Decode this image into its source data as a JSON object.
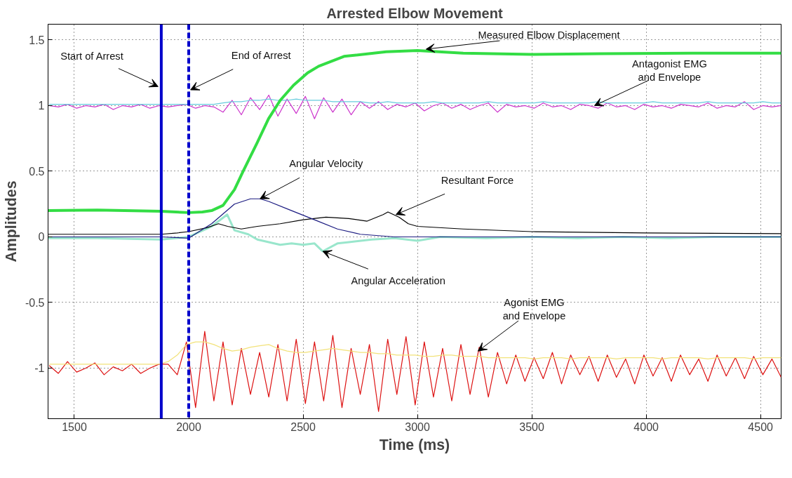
{
  "chart_data": {
    "type": "line",
    "title": "Arrested Elbow Movement",
    "xlabel": "Time (ms)",
    "ylabel": "Amplitudes",
    "xlim": [
      1385,
      4590
    ],
    "ylim": [
      -1.385,
      1.62
    ],
    "xticks": [
      1500,
      2000,
      2500,
      3000,
      3500,
      4000,
      4500
    ],
    "yticks": [
      -1,
      -0.5,
      0,
      0.5,
      1,
      1.5
    ],
    "grid": true,
    "marker": "none",
    "line_style": "solid",
    "x": [
      1390,
      1430,
      1470,
      1510,
      1550,
      1590,
      1630,
      1670,
      1710,
      1750,
      1790,
      1830,
      1870,
      1910,
      1950,
      1990,
      2030,
      2070,
      2110,
      2150,
      2190,
      2230,
      2270,
      2310,
      2350,
      2390,
      2430,
      2470,
      2510,
      2550,
      2590,
      2630,
      2670,
      2710,
      2750,
      2790,
      2830,
      2870,
      2910,
      2950,
      2990,
      3030,
      3070,
      3110,
      3150,
      3190,
      3230,
      3270,
      3310,
      3350,
      3390,
      3430,
      3470,
      3510,
      3550,
      3590,
      3630,
      3670,
      3710,
      3750,
      3790,
      3830,
      3870,
      3910,
      3950,
      3990,
      4030,
      4070,
      4110,
      4150,
      4190,
      4230,
      4270,
      4310,
      4350,
      4390,
      4430,
      4470,
      4510,
      4550,
      4590
    ],
    "series": [
      {
        "color": "#dd1111",
        "values": [
          -0.98,
          -1.04,
          -0.95,
          -1.03,
          -1.0,
          -0.96,
          -1.05,
          -0.99,
          -1.02,
          -0.97,
          -1.04,
          -1.0,
          -0.97,
          -0.97,
          -1.05,
          -0.8,
          -1.3,
          -0.72,
          -1.25,
          -0.8,
          -1.28,
          -0.85,
          -1.2,
          -0.88,
          -1.22,
          -0.82,
          -1.25,
          -0.78,
          -1.27,
          -0.8,
          -1.25,
          -0.75,
          -1.3,
          -0.85,
          -1.2,
          -0.82,
          -1.33,
          -0.78,
          -1.2,
          -0.76,
          -1.28,
          -0.8,
          -1.22,
          -0.85,
          -1.25,
          -0.82,
          -1.2,
          -0.84,
          -1.22,
          -0.88,
          -1.12,
          -0.9,
          -1.1,
          -0.92,
          -1.08,
          -0.88,
          -1.12,
          -0.9,
          -1.05,
          -0.91,
          -1.1,
          -0.9,
          -1.07,
          -0.93,
          -1.12,
          -0.9,
          -1.06,
          -0.92,
          -1.1,
          -0.9,
          -1.05,
          -0.93,
          -1.1,
          -0.9,
          -1.06,
          -0.92,
          -1.08,
          -0.91,
          -1.05,
          -0.93,
          -1.07
        ]
      },
      {
        "color": "#f2e27a",
        "values": [
          -0.97,
          -0.97,
          -0.97,
          -0.97,
          -0.97,
          -0.97,
          -0.97,
          -0.97,
          -0.97,
          -0.97,
          -0.97,
          -0.97,
          -0.97,
          -0.95,
          -0.9,
          -0.82,
          -0.8,
          -0.8,
          -0.82,
          -0.85,
          -0.87,
          -0.86,
          -0.84,
          -0.83,
          -0.82,
          -0.85,
          -0.87,
          -0.88,
          -0.88,
          -0.87,
          -0.86,
          -0.85,
          -0.86,
          -0.87,
          -0.88,
          -0.88,
          -0.89,
          -0.89,
          -0.9,
          -0.9,
          -0.9,
          -0.91,
          -0.91,
          -0.9,
          -0.9,
          -0.91,
          -0.91,
          -0.91,
          -0.92,
          -0.92,
          -0.92,
          -0.92,
          -0.92,
          -0.93,
          -0.92,
          -0.92,
          -0.92,
          -0.93,
          -0.92,
          -0.92,
          -0.92,
          -0.92,
          -0.93,
          -0.92,
          -0.92,
          -0.92,
          -0.92,
          -0.93,
          -0.92,
          -0.92,
          -0.92,
          -0.92,
          -0.93,
          -0.92,
          -0.92,
          -0.92,
          -0.92,
          -0.93,
          -0.92,
          -0.92,
          -0.92
        ]
      },
      {
        "color": "#cc33cc",
        "values": [
          1.0,
          0.99,
          1.01,
          0.98,
          1.0,
          0.99,
          1.01,
          0.97,
          1.0,
          0.99,
          1.01,
          0.98,
          1.0,
          0.99,
          1.0,
          1.01,
          0.98,
          1.0,
          0.99,
          0.95,
          1.04,
          0.93,
          1.06,
          0.97,
          1.08,
          0.92,
          1.05,
          0.94,
          1.07,
          0.9,
          1.06,
          0.95,
          1.05,
          0.93,
          1.03,
          0.98,
          1.03,
          0.97,
          1.01,
          0.99,
          1.02,
          0.96,
          1.0,
          1.02,
          0.98,
          1.01,
          0.97,
          1.0,
          1.02,
          0.95,
          1.01,
          0.99,
          1.0,
          0.98,
          1.02,
          0.99,
          1.0,
          0.97,
          1.01,
          1.0,
          0.98,
          1.02,
          0.99,
          1.0,
          0.97,
          1.01,
          0.99,
          1.0,
          0.98,
          1.01,
          1.0,
          0.99,
          1.02,
          0.98,
          1.0,
          0.99,
          1.03,
          0.97,
          1.0,
          0.99,
          1.0
        ]
      },
      {
        "color": "#66ccdd",
        "values": [
          1.01,
          1.01,
          1.01,
          1.01,
          1.01,
          1.01,
          1.01,
          1.01,
          1.01,
          1.01,
          1.01,
          1.01,
          1.01,
          1.01,
          1.01,
          1.01,
          1.01,
          1.01,
          1.01,
          1.02,
          1.03,
          1.03,
          1.04,
          1.04,
          1.05,
          1.04,
          1.04,
          1.05,
          1.04,
          1.04,
          1.04,
          1.03,
          1.03,
          1.03,
          1.03,
          1.02,
          1.02,
          1.03,
          1.02,
          1.02,
          1.02,
          1.02,
          1.03,
          1.02,
          1.02,
          1.02,
          1.02,
          1.02,
          1.03,
          1.02,
          1.02,
          1.02,
          1.02,
          1.02,
          1.03,
          1.02,
          1.02,
          1.02,
          1.02,
          1.02,
          1.03,
          1.02,
          1.02,
          1.02,
          1.02,
          1.02,
          1.03,
          1.02,
          1.02,
          1.02,
          1.02,
          1.02,
          1.03,
          1.02,
          1.02,
          1.02,
          1.02,
          1.02,
          1.03,
          1.02,
          1.02
        ]
      },
      {
        "color": "#99e6cc",
        "x": [
          1385,
          1600,
          1880,
          2000,
          2100,
          2168,
          2200,
          2260,
          2300,
          2400,
          2450,
          2500,
          2550,
          2586,
          2650,
          2700,
          2800,
          2900,
          3000,
          3100,
          3300,
          3500,
          3700,
          3900,
          4100,
          4300,
          4590
        ],
        "values": [
          -0.01,
          -0.01,
          -0.02,
          0.0,
          0.08,
          0.17,
          0.05,
          0.02,
          -0.02,
          -0.06,
          -0.05,
          -0.06,
          -0.05,
          -0.11,
          -0.05,
          -0.04,
          -0.02,
          -0.01,
          -0.03,
          0.0,
          -0.01,
          0.0,
          -0.01,
          0.0,
          -0.01,
          0.0,
          0.0
        ]
      },
      {
        "color": "#000000",
        "x": [
          1385,
          1880,
          1950,
          2000,
          2080,
          2130,
          2170,
          2230,
          2300,
          2400,
          2500,
          2600,
          2700,
          2780,
          2850,
          2871,
          2920,
          2960,
          3000,
          3200,
          3500,
          4000,
          4590
        ],
        "values": [
          0.02,
          0.02,
          0.03,
          0.04,
          0.07,
          0.1,
          0.08,
          0.06,
          0.08,
          0.1,
          0.13,
          0.15,
          0.14,
          0.12,
          0.17,
          0.19,
          0.15,
          0.1,
          0.08,
          0.06,
          0.04,
          0.03,
          0.025
        ]
      },
      {
        "color": "#1a1a80",
        "x": [
          1385,
          1880,
          2000,
          2100,
          2200,
          2270,
          2312,
          2350,
          2450,
          2550,
          2650,
          2750,
          2900,
          3200,
          3600,
          4000,
          4590
        ],
        "values": [
          0.0,
          0.0,
          -0.01,
          0.1,
          0.25,
          0.29,
          0.29,
          0.27,
          0.2,
          0.13,
          0.06,
          0.02,
          0.0,
          0.0,
          0.0,
          0.0,
          0.0
        ]
      },
      {
        "color": "#33dd44",
        "x": [
          1385,
          1600,
          1880,
          2000,
          2060,
          2100,
          2150,
          2200,
          2238,
          2300,
          2349,
          2400,
          2458,
          2520,
          2568,
          2679,
          2863,
          3000,
          3200,
          3500,
          3800,
          4200,
          4590
        ],
        "values": [
          0.2,
          0.205,
          0.195,
          0.185,
          0.19,
          0.2,
          0.24,
          0.36,
          0.5,
          0.72,
          0.9,
          1.04,
          1.155,
          1.25,
          1.3,
          1.375,
          1.41,
          1.42,
          1.4,
          1.39,
          1.395,
          1.4,
          1.4
        ]
      }
    ],
    "ref_lines": [
      {
        "axis": "x",
        "value": 1880,
        "color": "#0000cc",
        "line_style": "solid"
      },
      {
        "axis": "x",
        "value": 2000,
        "color": "#0000cc",
        "line_style": "dashed"
      }
    ],
    "annotations": [
      {
        "text": "Start of Arrest",
        "x": 1866,
        "y": 1.145
      },
      {
        "text": "End of Arrest",
        "x": 2008,
        "y": 1.12
      },
      {
        "text": "Angular Velocity",
        "x": 2312,
        "y": 0.29
      },
      {
        "text": "Resultant Force",
        "x": 2906,
        "y": 0.17
      },
      {
        "text": "Angular Acceleration",
        "x": 2586,
        "y": -0.11
      },
      {
        "text": "Measured Elbow Displacement",
        "x": 3038,
        "y": 1.43
      },
      {
        "text": "Antagonist EMG\nand Envelope",
        "x": 3774,
        "y": 1.0
      },
      {
        "text": "Agonist EMG\nand Envelope",
        "x": 3265,
        "y": -0.87
      }
    ]
  }
}
